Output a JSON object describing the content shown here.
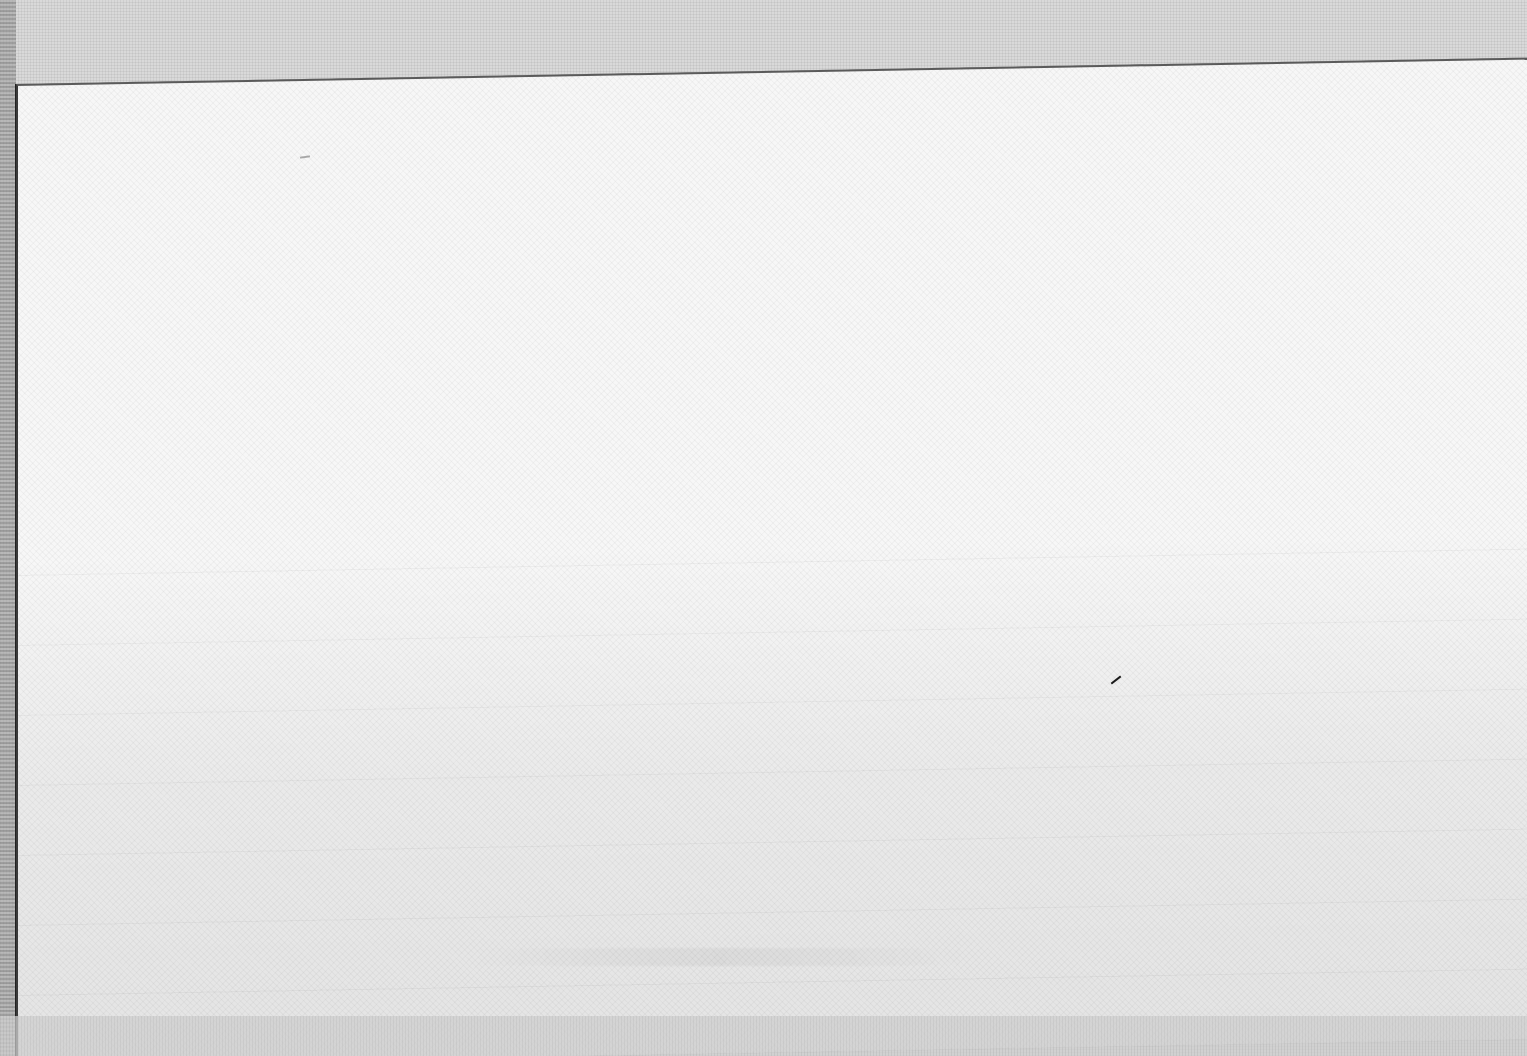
{
  "document": {
    "content": "",
    "colors": {
      "background": "#d9d9d9",
      "sheet": "#f7f7f7",
      "edge": "#3a3a3a"
    }
  }
}
